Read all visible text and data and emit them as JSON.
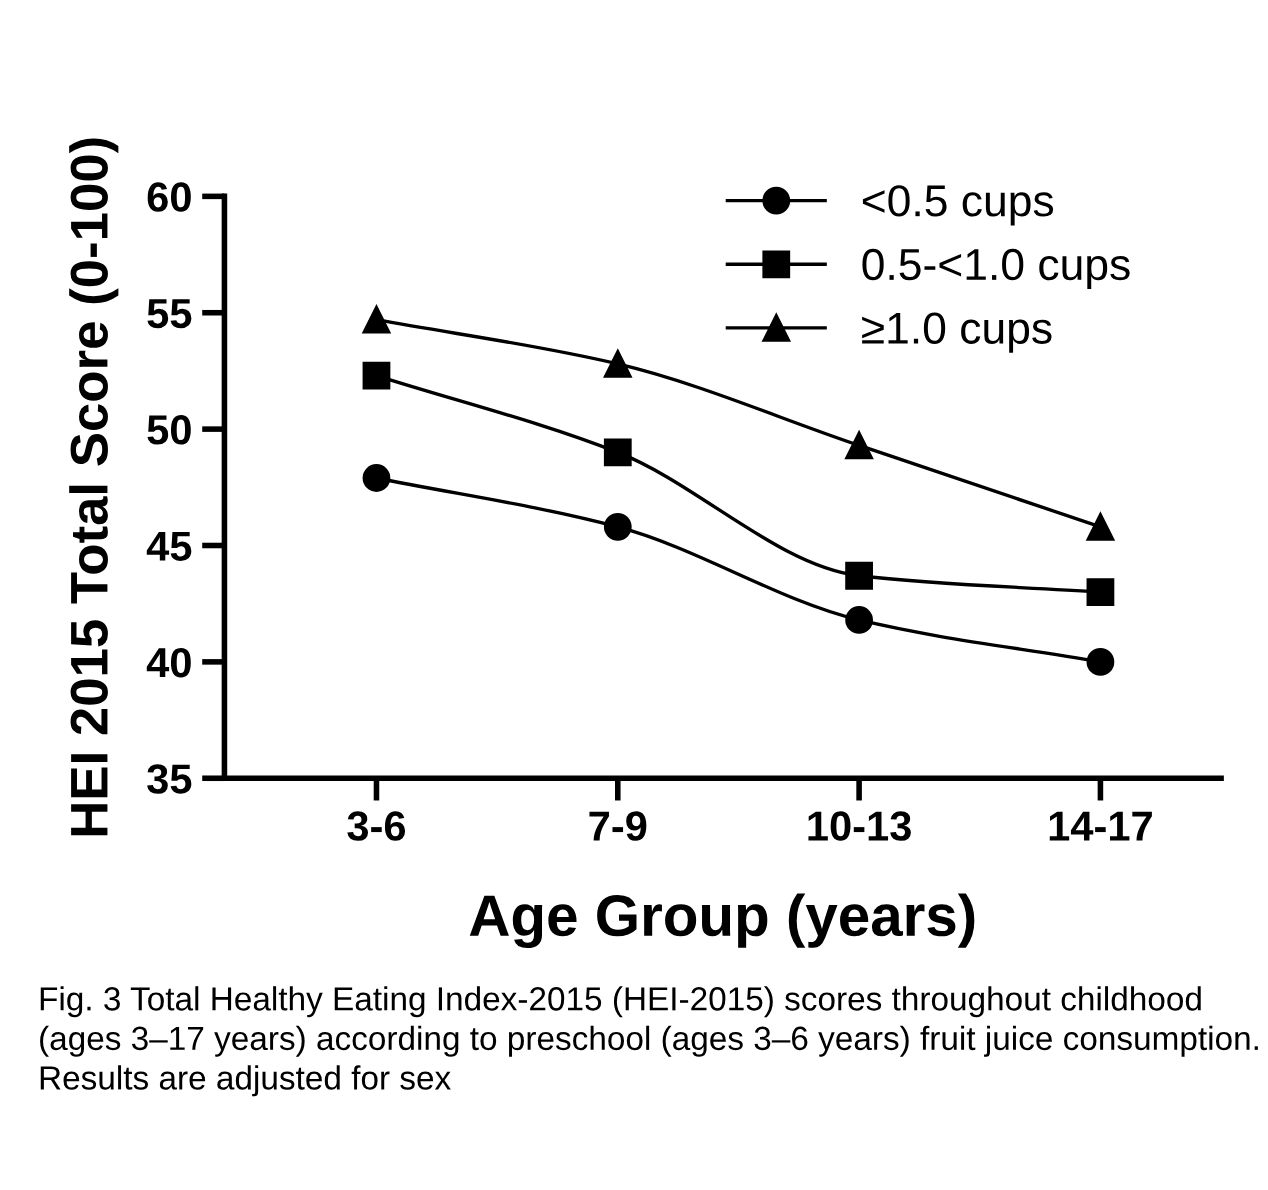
{
  "chart_data": {
    "type": "line",
    "xlabel": "Age Group (years)",
    "ylabel": "HEI 2015 Total Score (0-100)",
    "categories": [
      "3-6",
      "7-9",
      "10-13",
      "14-17"
    ],
    "series": [
      {
        "name": "<0.5 cups",
        "color": "#000000",
        "marker": "circle",
        "values": [
          47.9,
          45.8,
          41.8,
          40.0
        ]
      },
      {
        "name": "0.5-<1.0 cups",
        "color": "#000000",
        "marker": "square",
        "values": [
          52.3,
          49.0,
          43.7,
          43.0
        ]
      },
      {
        "name": "≥1.0 cups",
        "color": "#000000",
        "marker": "triangle",
        "values": [
          54.7,
          52.8,
          49.3,
          45.8
        ]
      }
    ],
    "ylim": [
      35,
      60
    ],
    "yticks": [
      35,
      40,
      45,
      50,
      55,
      60
    ],
    "grid": false,
    "legend": "top right",
    "line_style": "solid",
    "annotations": [
      "Fig. 3 Total Healthy Eating Index-2015 (HEI-2015) scores throughout childhood (ages 3–17 years) according to preschool (ages 3–6 years) fruit juice consumption. Results are adjusted for sex"
    ]
  }
}
